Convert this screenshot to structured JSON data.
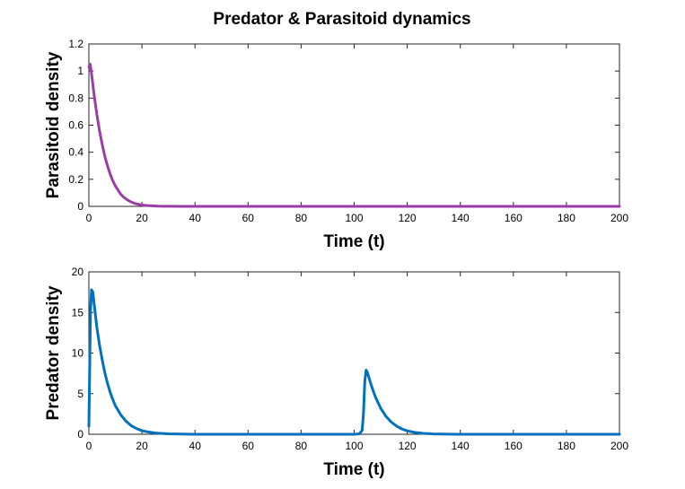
{
  "chart_data": [
    {
      "type": "line",
      "title": "Predator & Parasitoid dynamics",
      "xlabel": "Time (t)",
      "ylabel": "Parasitoid density",
      "xlim": [
        0,
        200
      ],
      "ylim": [
        0,
        1.2
      ],
      "xticks": [
        0,
        20,
        40,
        60,
        80,
        100,
        120,
        140,
        160,
        180,
        200
      ],
      "yticks": [
        0,
        0.2,
        0.4,
        0.6,
        0.8,
        1,
        1.2
      ],
      "xtick_labels": [
        "0",
        "20",
        "40",
        "60",
        "80",
        "100",
        "120",
        "140",
        "160",
        "180",
        "200"
      ],
      "ytick_labels": [
        "0",
        "0.2",
        "0.4",
        "0.6",
        "0.8",
        "1",
        "1.2"
      ],
      "series": [
        {
          "name": "Parasitoid",
          "color": "#9b3da8",
          "x": [
            0,
            0.5,
            1,
            2,
            3,
            4,
            5,
            6,
            7,
            8,
            9,
            10,
            11,
            12,
            13,
            14,
            15,
            16,
            17,
            18,
            20,
            22,
            24,
            26,
            28,
            30,
            35,
            40,
            50,
            60,
            80,
            100,
            120,
            140,
            160,
            180,
            200
          ],
          "y": [
            1.03,
            1.05,
            0.98,
            0.82,
            0.68,
            0.56,
            0.46,
            0.37,
            0.3,
            0.24,
            0.19,
            0.15,
            0.12,
            0.09,
            0.07,
            0.055,
            0.042,
            0.032,
            0.024,
            0.018,
            0.01,
            0.006,
            0.004,
            0.002,
            0.001,
            0.0005,
            0,
            0,
            0,
            0,
            0,
            0,
            0,
            0,
            0,
            0,
            0
          ]
        }
      ]
    },
    {
      "type": "line",
      "title": "",
      "xlabel": "Time (t)",
      "ylabel": "Predator density",
      "xlim": [
        0,
        200
      ],
      "ylim": [
        0,
        20
      ],
      "xticks": [
        0,
        20,
        40,
        60,
        80,
        100,
        120,
        140,
        160,
        180,
        200
      ],
      "yticks": [
        0,
        5,
        10,
        15,
        20
      ],
      "xtick_labels": [
        "0",
        "20",
        "40",
        "60",
        "80",
        "100",
        "120",
        "140",
        "160",
        "180",
        "200"
      ],
      "ytick_labels": [
        "0",
        "5",
        "10",
        "15",
        "20"
      ],
      "series": [
        {
          "name": "Predator",
          "color": "#0072bd",
          "x": [
            0,
            0.3,
            0.6,
            1,
            1.5,
            2,
            3,
            4,
            5,
            6,
            7,
            8,
            9,
            10,
            12,
            14,
            16,
            18,
            20,
            22,
            25,
            30,
            40,
            60,
            80,
            100,
            102,
            103,
            103.5,
            104,
            104.5,
            105,
            106,
            107,
            108,
            109,
            110,
            112,
            114,
            116,
            118,
            120,
            123,
            126,
            130,
            140,
            160,
            180,
            200
          ],
          "y": [
            1,
            8,
            15,
            17.8,
            17.5,
            16,
            13.2,
            11,
            9.2,
            7.6,
            6.3,
            5.2,
            4.3,
            3.5,
            2.4,
            1.6,
            1.05,
            0.7,
            0.45,
            0.3,
            0.15,
            0.05,
            0,
            0,
            0,
            0,
            0.05,
            0.5,
            2.5,
            6.5,
            7.9,
            7.6,
            6.5,
            5.5,
            4.6,
            3.9,
            3.2,
            2.2,
            1.5,
            1.0,
            0.65,
            0.42,
            0.22,
            0.11,
            0.04,
            0,
            0,
            0,
            0
          ]
        }
      ]
    }
  ]
}
